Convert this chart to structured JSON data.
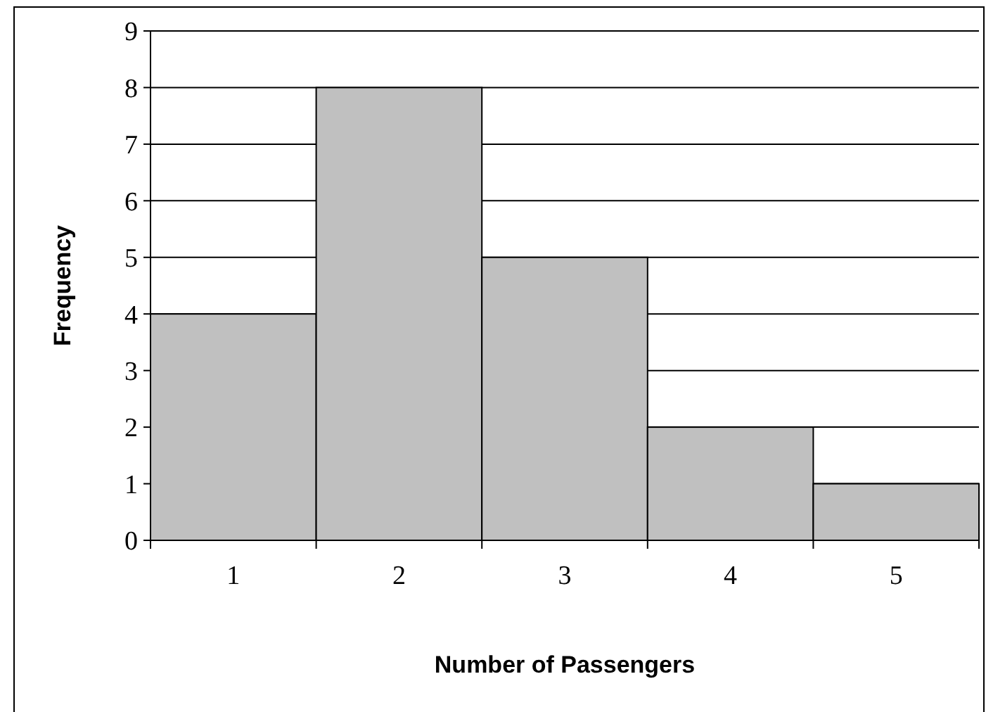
{
  "chart_data": {
    "type": "bar",
    "xlabel": "Number of Passengers",
    "ylabel": "Frequency",
    "categories": [
      "1",
      "2",
      "3",
      "4",
      "5"
    ],
    "values": [
      4,
      8,
      5,
      2,
      1
    ],
    "color": "#c0c0c0",
    "ylim": [
      0,
      9
    ],
    "yticks": [
      0,
      1,
      2,
      3,
      4,
      5,
      6,
      7,
      8,
      9
    ],
    "grid": "y"
  }
}
